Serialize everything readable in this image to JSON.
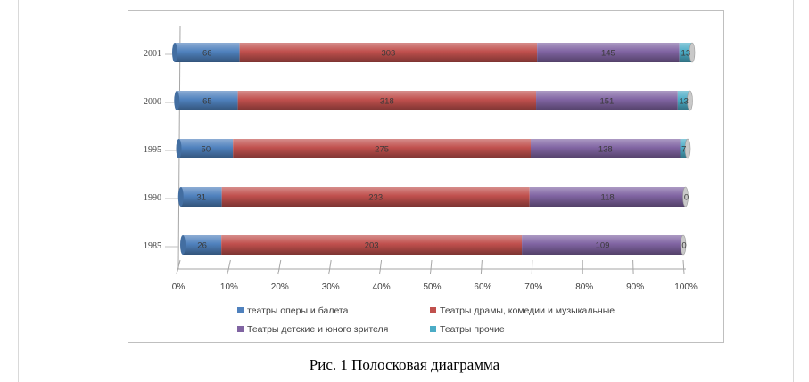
{
  "caption": "Рис. 1 Полосковая диаграмма",
  "chart_data": {
    "type": "bar",
    "orientation": "horizontal",
    "stacking": "percent",
    "categories": [
      "1985",
      "1990",
      "1995",
      "2000",
      "2001"
    ],
    "series": [
      {
        "name": "театры оперы и балета",
        "color": "#4f81bd",
        "values": [
          26,
          31,
          50,
          65,
          66
        ]
      },
      {
        "name": "Театры драмы, комедии и музыкальные",
        "color": "#c0504d",
        "values": [
          203,
          233,
          275,
          318,
          303
        ]
      },
      {
        "name": "Театры детские и юного зрителя",
        "color": "#8064a2",
        "values": [
          109,
          118,
          138,
          151,
          145
        ]
      },
      {
        "name": "Театры прочие",
        "color": "#4bacc6",
        "values": [
          0,
          0,
          7,
          13,
          13
        ]
      }
    ],
    "x_ticks": [
      "0%",
      "10%",
      "20%",
      "30%",
      "40%",
      "50%",
      "60%",
      "70%",
      "80%",
      "90%",
      "100%"
    ],
    "xlim": [
      0,
      100
    ],
    "grid": false,
    "legend_position": "bottom"
  }
}
